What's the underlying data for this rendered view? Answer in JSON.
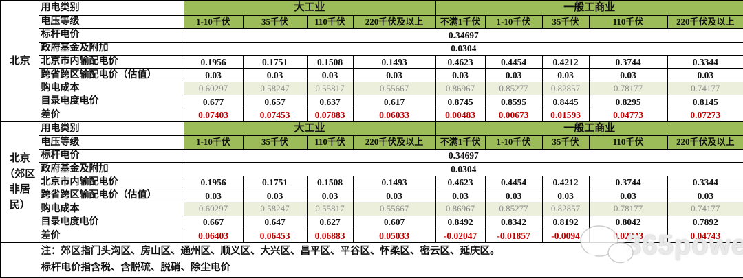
{
  "labels": {
    "usage_category": "用电类别",
    "voltage_level": "电压等级",
    "benchmark": "标杆电价",
    "gov_fund": "政府基金及附加",
    "city_transmission": "北京市内输配电价",
    "cross_province": "跨省跨区输配电价（估值）",
    "purchase_cost": "购电成本",
    "catalog_price": "目录电度电价",
    "price_diff": "差价"
  },
  "col_groups": [
    {
      "label": "大工业",
      "span": 4
    },
    {
      "label": "一般工商业",
      "span": 5
    }
  ],
  "voltage_headers": [
    "1-10千伏",
    "35千伏",
    "110千伏",
    "220千伏及以上",
    "不满1千伏",
    "1-10千伏",
    "35千伏",
    "110千伏",
    "220千伏及以上"
  ],
  "sections": [
    {
      "region": "北京",
      "benchmark_value": "0.34697",
      "gov_fund_value": "0.0304",
      "rows": [
        {
          "label_key": "city_transmission",
          "style": "bold",
          "values": [
            "0.1956",
            "0.1751",
            "0.1508",
            "0.1493",
            "0.4623",
            "0.4454",
            "0.4212",
            "0.3744",
            "0.3344"
          ]
        },
        {
          "label_key": "cross_province",
          "style": "bold",
          "values": [
            "0.03",
            "0.03",
            "0.03",
            "0.03",
            "0.03",
            "0.03",
            "0.03",
            "0.03",
            "0.03"
          ]
        },
        {
          "label_key": "purchase_cost",
          "style": "muted",
          "values": [
            "0.60297",
            "0.58247",
            "0.55817",
            "0.55667",
            "0.86967",
            "0.85277",
            "0.82857",
            "0.78177",
            "0.74177"
          ]
        },
        {
          "label_key": "catalog_price",
          "style": "bold",
          "values": [
            "0.677",
            "0.657",
            "0.637",
            "0.617",
            "0.8745",
            "0.8595",
            "0.8445",
            "0.8295",
            "0.8145"
          ]
        },
        {
          "label_key": "price_diff",
          "style": "red",
          "values": [
            "0.07403",
            "0.07453",
            "0.07883",
            "0.06033",
            "0.00483",
            "0.00673",
            "0.01593",
            "0.04773",
            "0.07273"
          ]
        }
      ]
    },
    {
      "region": "北京\n（郊区\n非居\n民）",
      "benchmark_value": "0.34697",
      "gov_fund_value": "0.0304",
      "rows": [
        {
          "label_key": "city_transmission",
          "style": "bold",
          "values": [
            "0.1956",
            "0.1751",
            "0.1508",
            "0.1493",
            "0.4623",
            "0.4454",
            "0.4212",
            "0.3744",
            "0.3344"
          ]
        },
        {
          "label_key": "cross_province",
          "style": "bold",
          "values": [
            "0.03",
            "0.03",
            "0.03",
            "0.03",
            "0.03",
            "0.03",
            "0.03",
            "0.03",
            "0.03"
          ]
        },
        {
          "label_key": "purchase_cost",
          "style": "muted",
          "values": [
            "0.60297",
            "0.58247",
            "0.55817",
            "0.55667",
            "0.86967",
            "0.85277",
            "0.82857",
            "0.78177",
            "0.74177"
          ]
        },
        {
          "label_key": "catalog_price",
          "style": "bold",
          "values": [
            "0.667",
            "0.647",
            "0.627",
            "0.607",
            "0.8492",
            "0.8342",
            "0.8192",
            "0.8042",
            "0.7892"
          ]
        },
        {
          "label_key": "price_diff",
          "style": "red",
          "values": [
            "0.06403",
            "0.06453",
            "0.06883",
            "0.05033",
            "-0.02047",
            "-0.01857",
            "-0.0094",
            "0.02243",
            "0.04743"
          ]
        }
      ]
    }
  ],
  "notes": [
    "注：郊区指门头沟区、房山区、通州区、顺义区、大兴区、昌平区、平谷区、怀柔区、密云区、延庆区。",
    "标杆电价指含税、含脱硫、脱硝、除尘电价"
  ],
  "watermark": {
    "text": "365power",
    "icon": "wechat-bubbles-icon"
  },
  "colors": {
    "header_green": "#9cbb59",
    "cost_row_bg": "#ebefdb",
    "diff_red": "#c00000",
    "muted_gray": "#8c8c8c",
    "border": "#000000"
  }
}
